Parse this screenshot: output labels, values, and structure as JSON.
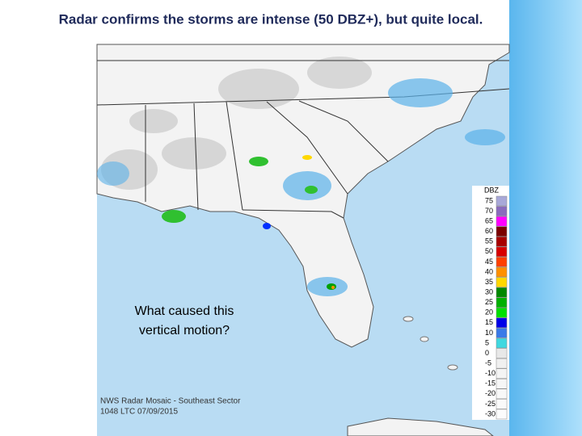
{
  "title": "Radar confirms the storms are intense (50 DBZ+), but quite local.",
  "map": {
    "question": [
      "What caused this",
      "vertical motion?"
    ],
    "caption": [
      "NWS Radar Mosaic - Southeast Sector",
      "1048 LTC 07/09/2015"
    ],
    "legend": {
      "title": "DBZ",
      "entries": [
        {
          "label": "75",
          "color": "#a8a8d8"
        },
        {
          "label": "70",
          "color": "#8a6bbd"
        },
        {
          "label": "65",
          "color": "#ff00ff"
        },
        {
          "label": "60",
          "color": "#7a0000"
        },
        {
          "label": "55",
          "color": "#a80000"
        },
        {
          "label": "50",
          "color": "#d80000"
        },
        {
          "label": "45",
          "color": "#ff4000"
        },
        {
          "label": "40",
          "color": "#ff9000"
        },
        {
          "label": "35",
          "color": "#ffd800"
        },
        {
          "label": "30",
          "color": "#008800"
        },
        {
          "label": "25",
          "color": "#00b000"
        },
        {
          "label": "20",
          "color": "#00e000"
        },
        {
          "label": "15",
          "color": "#0000e8"
        },
        {
          "label": "10",
          "color": "#3a7ae8"
        },
        {
          "label": "5",
          "color": "#40d8e0"
        },
        {
          "label": "0",
          "color": "#e8e8e8"
        },
        {
          "label": "-5",
          "color": "#f0f0f0"
        },
        {
          "label": "-10",
          "color": "#f4f4f4"
        },
        {
          "label": "-15",
          "color": "#f6f6f6"
        },
        {
          "label": "-20",
          "color": "#f8f8f8"
        },
        {
          "label": "-25",
          "color": "#fafafa"
        },
        {
          "label": "-30",
          "color": "#fcfcfc"
        }
      ]
    }
  }
}
